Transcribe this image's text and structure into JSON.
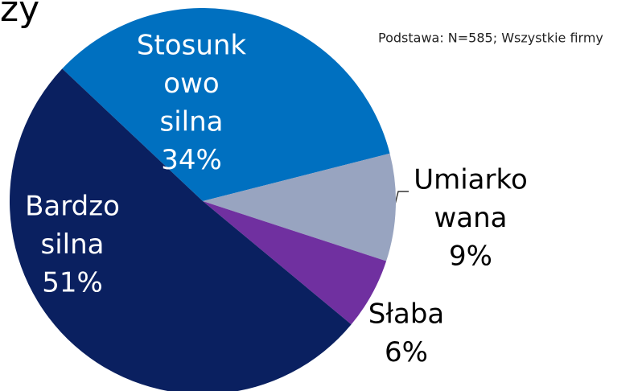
{
  "chart_data": {
    "type": "pie",
    "title": "zy",
    "subtitle": "Podstawa: N=585; Wszystkie firmy",
    "categories": [
      [
        "Stosunk",
        "owo",
        "silna"
      ],
      [
        "Umiarko",
        "wana"
      ],
      [
        "Słaba"
      ],
      [
        "Bardzo",
        "silna"
      ]
    ],
    "values": [
      34,
      9,
      6,
      51
    ],
    "value_labels": [
      "34%",
      "9%",
      "6%",
      "51%"
    ],
    "colors": [
      "#0070c0",
      "#98a4c0",
      "#7030a0",
      "#0a2060"
    ]
  }
}
